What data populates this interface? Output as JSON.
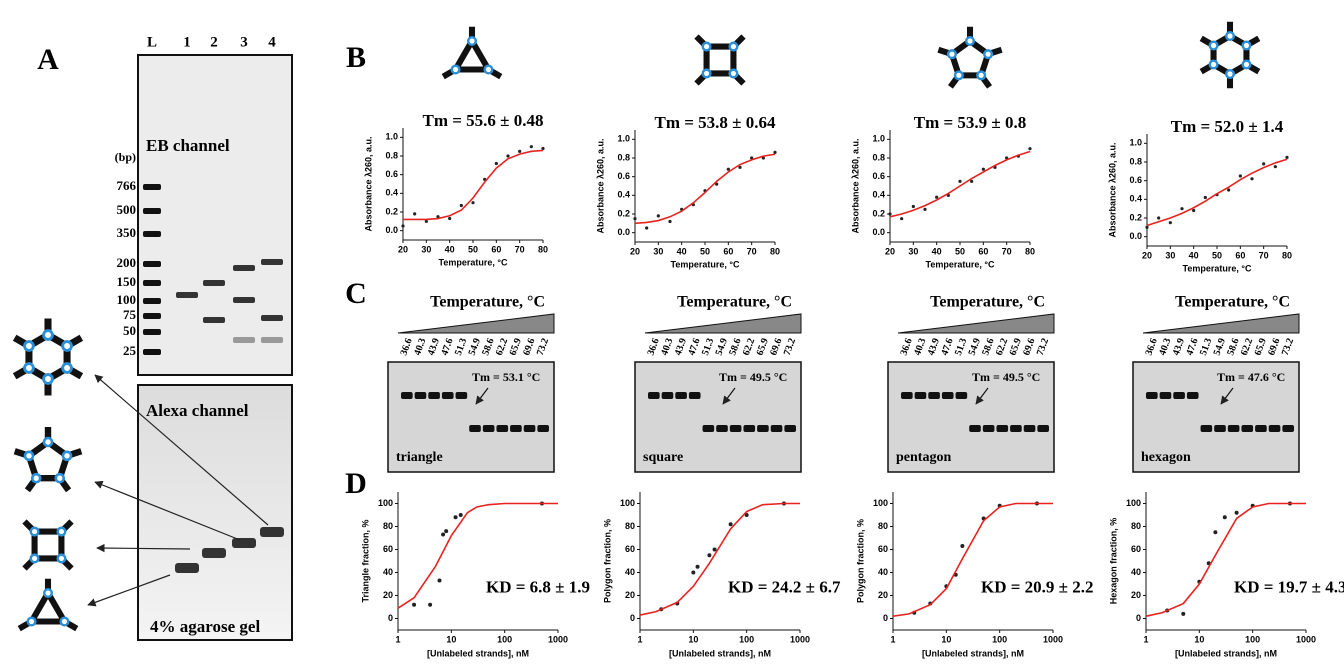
{
  "panel_labels": [
    "A",
    "B",
    "C",
    "D"
  ],
  "gel_a": {
    "lanes": [
      "L",
      "1",
      "2",
      "3",
      "4"
    ],
    "unit": "(bp)",
    "ladder": [
      766,
      500,
      350,
      200,
      150,
      100,
      75,
      50,
      25
    ],
    "top_label": "EB channel",
    "bottom_label": "Alexa channel",
    "gel_note": "4% agarose gel"
  },
  "gels_c": [
    {
      "title": "Temperature, °C",
      "temps": [
        36.6,
        40.3,
        43.9,
        47.6,
        51.3,
        54.9,
        58.6,
        62.2,
        65.9,
        69.6,
        73.2
      ],
      "tm_label": "Tm = 53.1 °C",
      "name": "triangle"
    },
    {
      "title": "Temperature, °C",
      "temps": [
        36.6,
        40.3,
        43.9,
        47.6,
        51.3,
        54.9,
        58.6,
        62.2,
        65.9,
        69.6,
        73.2
      ],
      "tm_label": "Tm = 49.5 °C",
      "name": "square"
    },
    {
      "title": "Temperature, °C",
      "temps": [
        36.6,
        40.3,
        43.9,
        47.6,
        51.3,
        54.9,
        58.6,
        62.2,
        65.9,
        69.6,
        73.2
      ],
      "tm_label": "Tm = 49.5 °C",
      "name": "pentagon"
    },
    {
      "title": "Temperature, °C",
      "temps": [
        36.6,
        40.3,
        43.9,
        47.6,
        51.3,
        54.9,
        58.6,
        62.2,
        65.9,
        69.6,
        73.2
      ],
      "tm_label": "Tm = 47.6 °C",
      "name": "hexagon"
    }
  ],
  "chart_data": [
    {
      "type": "scatter",
      "title": "Tm = 55.6 ± 0.48",
      "x_label": "Temperature, °C",
      "y_label": "Absorbance λ260, a.u.",
      "xlim": [
        20,
        80
      ],
      "xticks": [
        20,
        30,
        40,
        50,
        60,
        70,
        80
      ],
      "ylim": [
        -0.1,
        1.1
      ],
      "yticks": [
        {
          "value": 0,
          "label": "0.0"
        },
        {
          "value": 0.2,
          "label": "0.2"
        },
        {
          "value": 0.4,
          "label": "0.4"
        },
        {
          "value": 0.6,
          "label": "0.6"
        },
        {
          "value": 0.8,
          "label": "0.8"
        },
        {
          "value": 1,
          "label": "1.0"
        }
      ],
      "series": [
        {
          "style": "points",
          "color": "#222",
          "x": [
            20,
            25,
            30,
            35,
            40,
            45,
            50,
            55,
            60,
            65,
            70,
            75,
            80
          ],
          "values": [
            0.05,
            0.18,
            0.1,
            0.15,
            0.13,
            0.27,
            0.3,
            0.55,
            0.72,
            0.8,
            0.85,
            0.9,
            0.88
          ]
        },
        {
          "style": "line",
          "color": "#e8231f",
          "x": [
            20,
            25,
            30,
            35,
            40,
            45,
            50,
            55,
            60,
            65,
            70,
            75,
            80
          ],
          "values": [
            0.12,
            0.12,
            0.12,
            0.13,
            0.16,
            0.22,
            0.35,
            0.52,
            0.67,
            0.77,
            0.82,
            0.85,
            0.86
          ]
        }
      ]
    },
    {
      "type": "scatter",
      "title": "Tm = 53.8 ± 0.64",
      "x_label": "Temperature, °C",
      "y_label": "Absorbance λ260, a.u.",
      "xlim": [
        20,
        80
      ],
      "xticks": [
        20,
        30,
        40,
        50,
        60,
        70,
        80
      ],
      "ylim": [
        -0.1,
        1.1
      ],
      "yticks": [
        {
          "value": 0,
          "label": "0.0"
        },
        {
          "value": 0.2,
          "label": "0.2"
        },
        {
          "value": 0.4,
          "label": "0.4"
        },
        {
          "value": 0.6,
          "label": "0.6"
        },
        {
          "value": 0.8,
          "label": "0.8"
        },
        {
          "value": 1,
          "label": "1.0"
        }
      ],
      "series": [
        {
          "style": "points",
          "color": "#222",
          "x": [
            20,
            25,
            30,
            35,
            40,
            45,
            50,
            55,
            60,
            65,
            70,
            75,
            80
          ],
          "values": [
            0.15,
            0.05,
            0.18,
            0.12,
            0.25,
            0.3,
            0.45,
            0.52,
            0.68,
            0.7,
            0.8,
            0.8,
            0.86
          ]
        },
        {
          "style": "line",
          "color": "#e8231f",
          "x": [
            20,
            25,
            30,
            35,
            40,
            45,
            50,
            55,
            60,
            65,
            70,
            75,
            80
          ],
          "values": [
            0.1,
            0.11,
            0.13,
            0.17,
            0.23,
            0.32,
            0.43,
            0.55,
            0.65,
            0.73,
            0.78,
            0.82,
            0.84
          ]
        }
      ]
    },
    {
      "type": "scatter",
      "title": "Tm = 53.9 ± 0.8",
      "x_label": "Temperature, °C",
      "y_label": "Absorbance λ260, a.u.",
      "xlim": [
        20,
        80
      ],
      "xticks": [
        20,
        30,
        40,
        50,
        60,
        70,
        80
      ],
      "ylim": [
        -0.1,
        1.1
      ],
      "yticks": [
        {
          "value": 0,
          "label": "0.0"
        },
        {
          "value": 0.2,
          "label": "0.2"
        },
        {
          "value": 0.4,
          "label": "0.4"
        },
        {
          "value": 0.6,
          "label": "0.6"
        },
        {
          "value": 0.8,
          "label": "0.8"
        },
        {
          "value": 1,
          "label": "1.0"
        }
      ],
      "series": [
        {
          "style": "points",
          "color": "#222",
          "x": [
            20,
            25,
            30,
            35,
            40,
            45,
            50,
            55,
            60,
            65,
            70,
            75,
            80
          ],
          "values": [
            0.2,
            0.15,
            0.28,
            0.25,
            0.38,
            0.4,
            0.55,
            0.55,
            0.68,
            0.7,
            0.8,
            0.82,
            0.9
          ]
        },
        {
          "style": "line",
          "color": "#e8231f",
          "x": [
            20,
            25,
            30,
            35,
            40,
            45,
            50,
            55,
            60,
            65,
            70,
            75,
            80
          ],
          "values": [
            0.17,
            0.2,
            0.24,
            0.29,
            0.35,
            0.42,
            0.5,
            0.58,
            0.65,
            0.72,
            0.78,
            0.83,
            0.87
          ]
        }
      ]
    },
    {
      "type": "scatter",
      "title": "Tm = 52.0 ± 1.4",
      "x_label": "Temperature, °C",
      "y_label": "Absorbance λ260, a.u.",
      "xlim": [
        20,
        80
      ],
      "xticks": [
        20,
        30,
        40,
        50,
        60,
        70,
        80
      ],
      "ylim": [
        -0.1,
        1.1
      ],
      "yticks": [
        {
          "value": 0,
          "label": "0.0"
        },
        {
          "value": 0.2,
          "label": "0.2"
        },
        {
          "value": 0.4,
          "label": "0.4"
        },
        {
          "value": 0.6,
          "label": "0.6"
        },
        {
          "value": 0.8,
          "label": "0.8"
        },
        {
          "value": 1,
          "label": "1.0"
        }
      ],
      "series": [
        {
          "style": "points",
          "color": "#222",
          "x": [
            20,
            25,
            30,
            35,
            40,
            45,
            50,
            55,
            60,
            65,
            70,
            75,
            80
          ],
          "values": [
            0.1,
            0.2,
            0.15,
            0.3,
            0.28,
            0.42,
            0.45,
            0.5,
            0.65,
            0.62,
            0.78,
            0.75,
            0.85
          ]
        },
        {
          "style": "line",
          "color": "#e8231f",
          "x": [
            20,
            25,
            30,
            35,
            40,
            45,
            50,
            55,
            60,
            65,
            70,
            75,
            80
          ],
          "values": [
            0.12,
            0.16,
            0.2,
            0.25,
            0.31,
            0.38,
            0.46,
            0.53,
            0.61,
            0.68,
            0.74,
            0.79,
            0.83
          ]
        }
      ]
    },
    {
      "type": "scatter",
      "annotation": "KD = 6.8 ± 1.9",
      "x_label": "[Unlabeled strands], nM",
      "y_label": "Triangle fraction, %",
      "log_x": true,
      "xlim": [
        1,
        1000
      ],
      "xticks": [
        1,
        10,
        100,
        1000
      ],
      "ylim": [
        -10,
        110
      ],
      "yticks": [
        0,
        20,
        40,
        60,
        80,
        100
      ],
      "series": [
        {
          "style": "points",
          "color": "#222",
          "x": [
            2,
            4,
            6,
            7,
            8,
            12,
            15,
            500
          ],
          "values": [
            12,
            12,
            33,
            73,
            76,
            88,
            90,
            100
          ]
        },
        {
          "style": "line",
          "color": "#e8231f",
          "x": [
            1,
            2,
            5,
            10,
            20,
            30,
            50,
            100,
            500,
            1000
          ],
          "values": [
            9,
            18,
            45,
            72,
            92,
            97,
            99,
            100,
            100,
            100
          ]
        }
      ]
    },
    {
      "type": "scatter",
      "annotation": "KD = 24.2 ± 6.7",
      "x_label": "[Unlabeled strands], nM",
      "y_label": "Polygon fraction, %",
      "log_x": true,
      "xlim": [
        1,
        1000
      ],
      "xticks": [
        1,
        10,
        100,
        1000
      ],
      "ylim": [
        -10,
        110
      ],
      "yticks": [
        0,
        20,
        40,
        60,
        80,
        100
      ],
      "series": [
        {
          "style": "points",
          "color": "#222",
          "x": [
            2.5,
            5,
            10,
            12,
            20,
            25,
            50,
            100,
            500
          ],
          "values": [
            8,
            13,
            40,
            45,
            55,
            60,
            82,
            90,
            100
          ]
        },
        {
          "style": "line",
          "color": "#e8231f",
          "x": [
            1,
            2,
            5,
            10,
            20,
            50,
            100,
            200,
            500,
            1000
          ],
          "values": [
            3,
            6,
            14,
            28,
            48,
            78,
            93,
            99,
            100,
            100
          ]
        }
      ]
    },
    {
      "type": "scatter",
      "annotation": "KD = 20.9 ± 2.2",
      "x_label": "[Unlabeled strands], nM",
      "y_label": "Polygon fraction, %",
      "log_x": true,
      "xlim": [
        1,
        1000
      ],
      "xticks": [
        1,
        10,
        100,
        1000
      ],
      "ylim": [
        -10,
        110
      ],
      "yticks": [
        0,
        20,
        40,
        60,
        80,
        100
      ],
      "series": [
        {
          "style": "points",
          "color": "#222",
          "x": [
            2.5,
            5,
            10,
            15,
            20,
            50,
            100,
            500
          ],
          "values": [
            5,
            13,
            28,
            38,
            63,
            87,
            98,
            100
          ]
        },
        {
          "style": "line",
          "color": "#e8231f",
          "x": [
            1,
            2,
            5,
            10,
            20,
            50,
            100,
            200,
            500,
            1000
          ],
          "values": [
            2,
            4,
            12,
            26,
            52,
            85,
            97,
            100,
            100,
            100
          ]
        }
      ]
    },
    {
      "type": "scatter",
      "annotation": "KD = 19.7 ± 4.3",
      "x_label": "[Unlabeled strands], nM",
      "y_label": "Hexagon fraction, %",
      "log_x": true,
      "xlim": [
        1,
        1000
      ],
      "xticks": [
        1,
        10,
        100,
        1000
      ],
      "ylim": [
        -10,
        110
      ],
      "yticks": [
        0,
        20,
        40,
        60,
        80,
        100
      ],
      "series": [
        {
          "style": "points",
          "color": "#222",
          "x": [
            2.5,
            5,
            10,
            15,
            20,
            30,
            50,
            100,
            500
          ],
          "values": [
            7,
            4,
            32,
            48,
            75,
            88,
            92,
            98,
            100
          ]
        },
        {
          "style": "line",
          "color": "#e8231f",
          "x": [
            1,
            2,
            5,
            10,
            20,
            50,
            100,
            200,
            500,
            1000
          ],
          "values": [
            2,
            5,
            13,
            30,
            55,
            87,
            97,
            100,
            100,
            100
          ]
        }
      ]
    }
  ]
}
